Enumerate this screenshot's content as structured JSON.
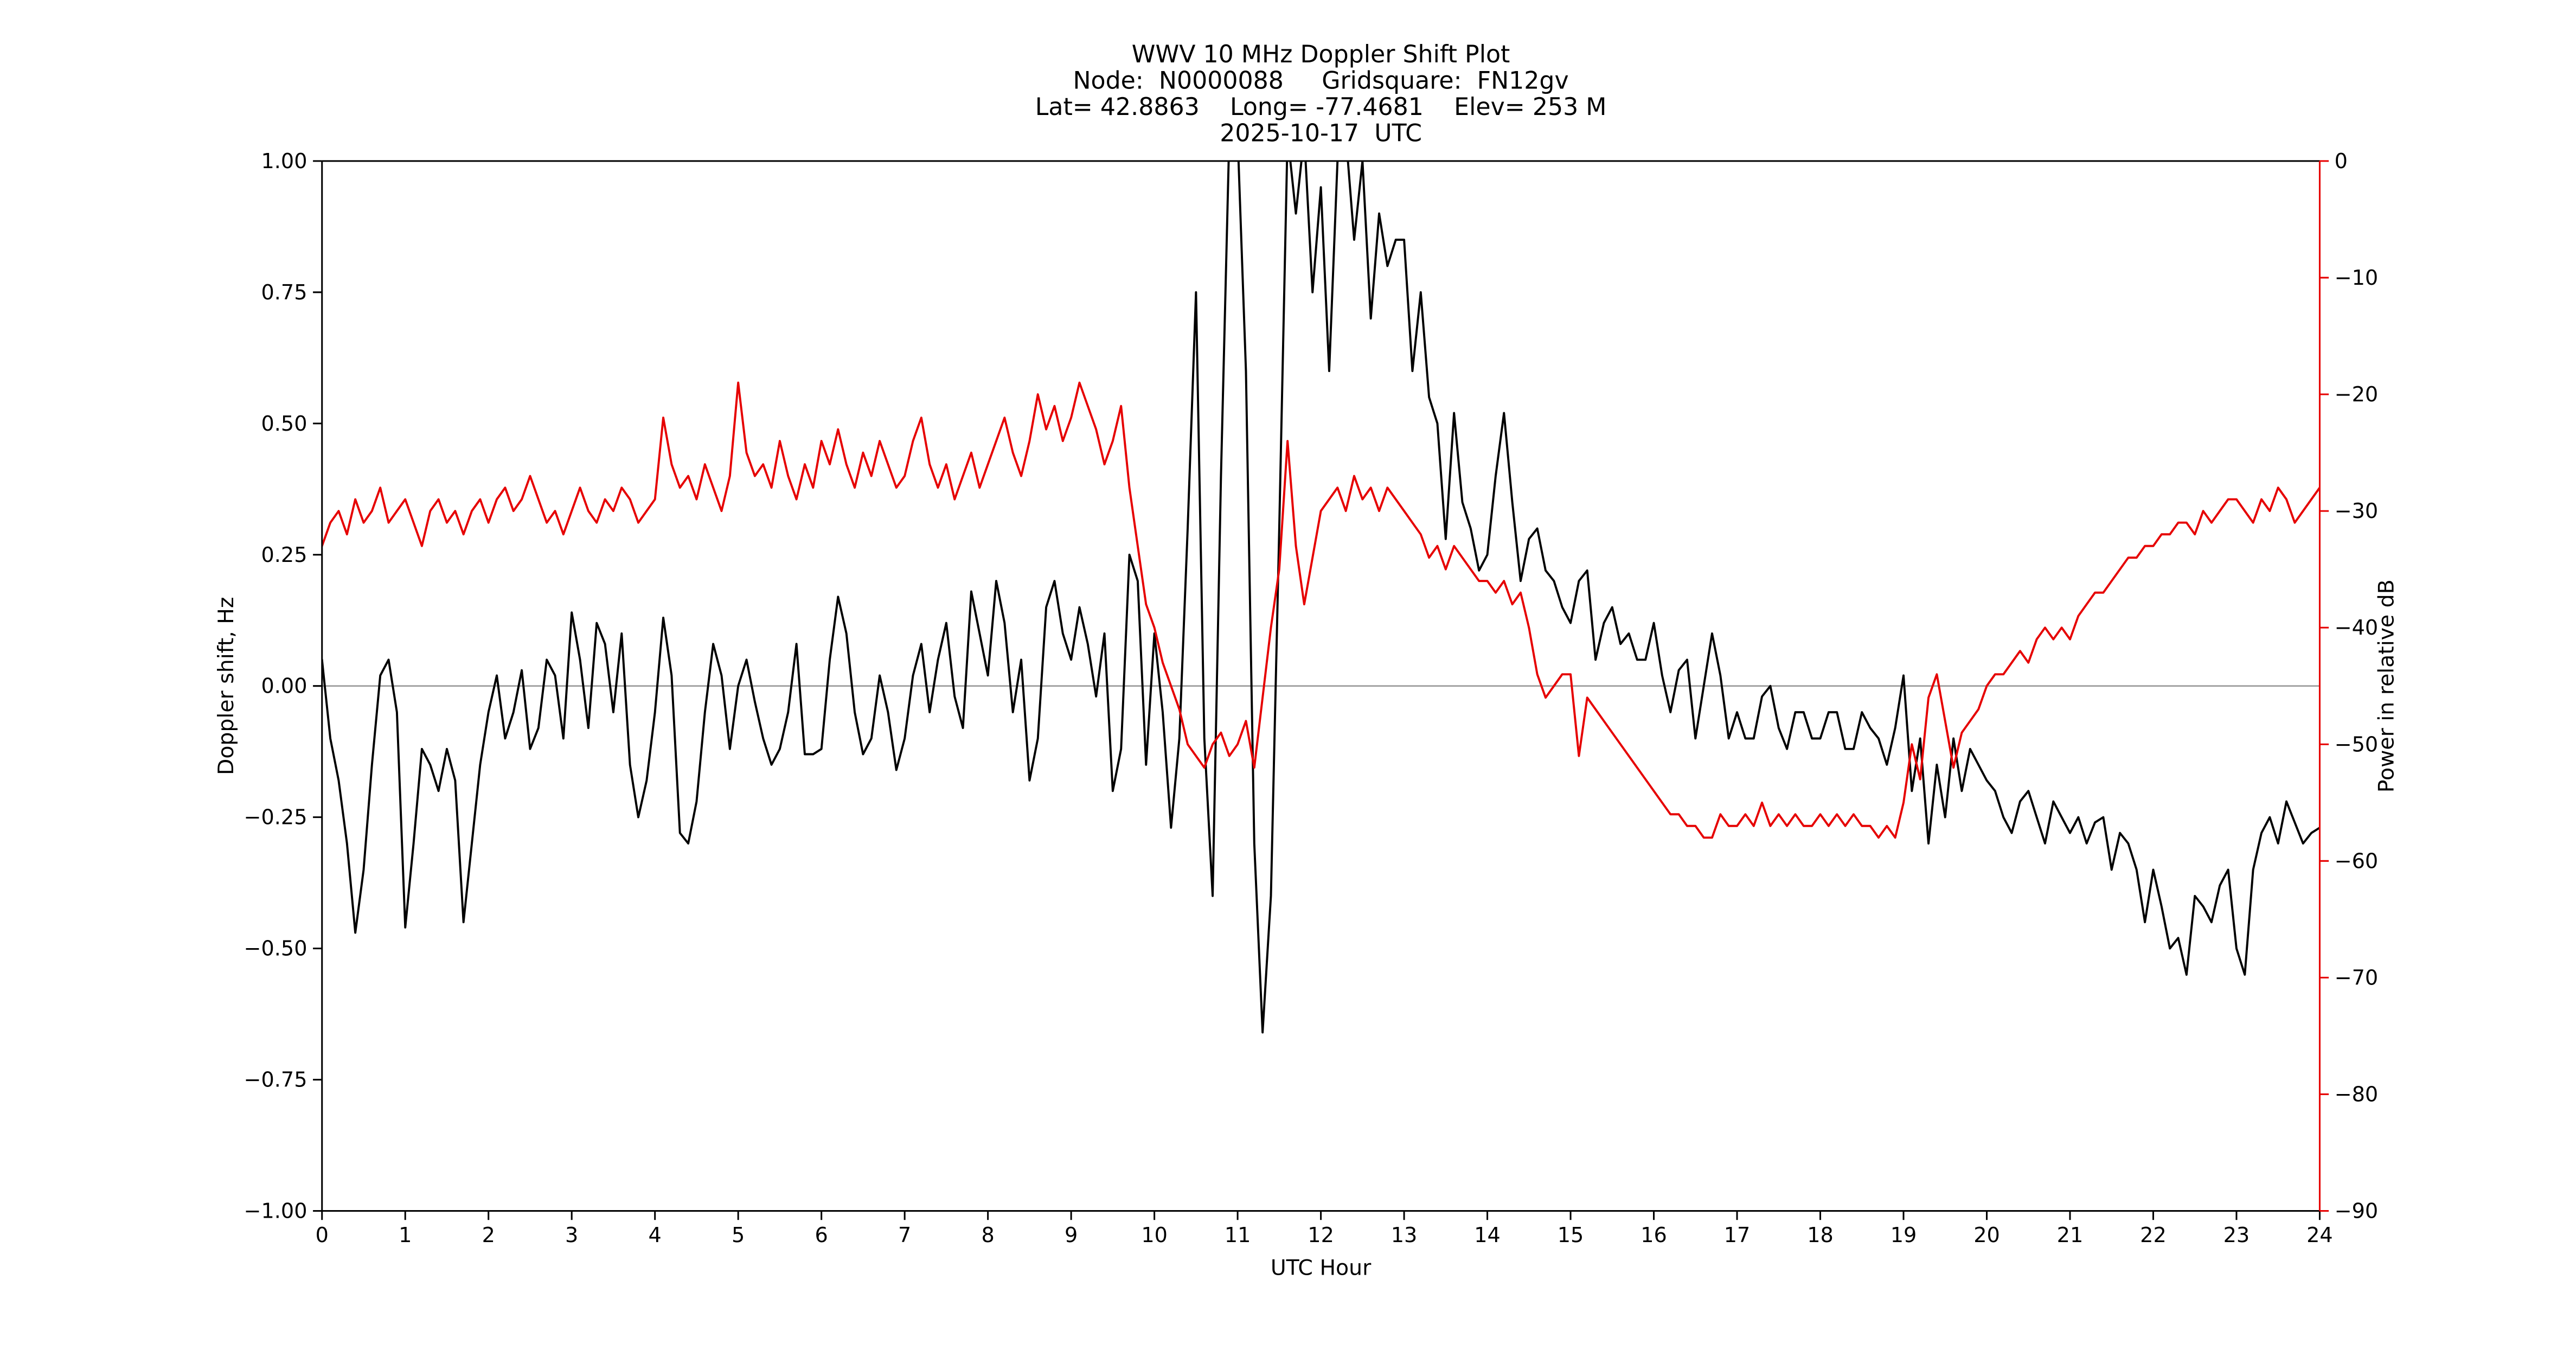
{
  "figure": {
    "title_line1": "WWV 10 MHz Doppler Shift Plot",
    "title_line2": "Node:  N0000088     Gridsquare:  FN12gv",
    "title_line3": "Lat= 42.8863    Long= -77.4681    Elev= 253 M",
    "title_line4": "2025-10-17  UTC",
    "xlabel": "UTC Hour",
    "ylabel_left": "Doppler shift, Hz",
    "ylabel_right": "Power in relative dB"
  },
  "colors": {
    "doppler": "#000000",
    "power": "#e60000",
    "zero_line": "#999999",
    "frame": "#000000"
  },
  "chart_data": {
    "type": "line",
    "title": "WWV 10 MHz Doppler Shift Plot",
    "xlabel": "UTC Hour",
    "ylabel_left": "Doppler shift, Hz",
    "ylabel_right": "Power in relative dB",
    "x_range": [
      0,
      24
    ],
    "y_left_range": [
      -1.0,
      1.0
    ],
    "y_right_range": [
      -90,
      0
    ],
    "grid": false,
    "legend": "none",
    "zero_reference_line_left": 0.0,
    "x_step": 0.1,
    "x_ticks": {
      "positions": [
        0,
        1,
        2,
        3,
        4,
        5,
        6,
        7,
        8,
        9,
        10,
        11,
        12,
        13,
        14,
        15,
        16,
        17,
        18,
        19,
        20,
        21,
        22,
        23,
        24
      ],
      "labels": [
        "0",
        "1",
        "2",
        "3",
        "4",
        "5",
        "6",
        "7",
        "8",
        "9",
        "10",
        "11",
        "12",
        "13",
        "14",
        "15",
        "16",
        "17",
        "18",
        "19",
        "20",
        "21",
        "22",
        "23",
        "24"
      ]
    },
    "y_left_ticks": {
      "positions": [
        1.0,
        0.75,
        0.5,
        0.25,
        0.0,
        -0.25,
        -0.5,
        -0.75,
        -1.0
      ],
      "labels": [
        "1.00",
        "0.75",
        "0.50",
        "0.25",
        "0.00",
        "−0.25",
        "−0.50",
        "−0.75",
        "−1.00"
      ]
    },
    "y_right_ticks": {
      "positions": [
        0,
        -10,
        -20,
        -30,
        -40,
        -50,
        -60,
        -70,
        -80,
        -90
      ],
      "labels": [
        "0",
        "−10",
        "−20",
        "−30",
        "−40",
        "−50",
        "−60",
        "−70",
        "−80",
        "−90"
      ]
    },
    "series": [
      {
        "name": "Doppler shift (Hz)",
        "axis": "left",
        "color": "#000000",
        "values": [
          0.05,
          -0.1,
          -0.18,
          -0.3,
          -0.47,
          -0.35,
          -0.15,
          0.02,
          0.05,
          -0.05,
          -0.46,
          -0.3,
          -0.12,
          -0.15,
          -0.2,
          -0.12,
          -0.18,
          -0.45,
          -0.3,
          -0.15,
          -0.05,
          0.02,
          -0.1,
          -0.05,
          0.03,
          -0.12,
          -0.08,
          0.05,
          0.02,
          -0.1,
          0.14,
          0.05,
          -0.08,
          0.12,
          0.08,
          -0.05,
          0.1,
          -0.15,
          -0.25,
          -0.18,
          -0.05,
          0.13,
          0.02,
          -0.28,
          -0.3,
          -0.22,
          -0.05,
          0.08,
          0.02,
          -0.12,
          0.0,
          0.05,
          -0.03,
          -0.1,
          -0.15,
          -0.12,
          -0.05,
          0.08,
          -0.13,
          -0.13,
          -0.12,
          0.05,
          0.17,
          0.1,
          -0.05,
          -0.13,
          -0.1,
          0.02,
          -0.05,
          -0.16,
          -0.1,
          0.02,
          0.08,
          -0.05,
          0.05,
          0.12,
          -0.02,
          -0.08,
          0.18,
          0.1,
          0.02,
          0.2,
          0.12,
          -0.05,
          0.05,
          -0.18,
          -0.1,
          0.15,
          0.2,
          0.1,
          0.05,
          0.15,
          0.08,
          -0.02,
          0.1,
          -0.2,
          -0.12,
          0.25,
          0.2,
          -0.15,
          0.1,
          -0.05,
          -0.27,
          -0.1,
          0.3,
          0.75,
          -0.1,
          -0.4,
          0.4,
          1.05,
          1.05,
          0.6,
          -0.3,
          -0.66,
          -0.4,
          0.3,
          1.05,
          0.9,
          1.05,
          0.75,
          0.95,
          0.6,
          1.0,
          1.05,
          0.85,
          1.0,
          0.7,
          0.9,
          0.8,
          0.85,
          0.85,
          0.6,
          0.75,
          0.55,
          0.5,
          0.28,
          0.52,
          0.35,
          0.3,
          0.22,
          0.25,
          0.4,
          0.52,
          0.35,
          0.2,
          0.28,
          0.3,
          0.22,
          0.2,
          0.15,
          0.12,
          0.2,
          0.22,
          0.05,
          0.12,
          0.15,
          0.08,
          0.1,
          0.05,
          0.05,
          0.12,
          0.02,
          -0.05,
          0.03,
          0.05,
          -0.1,
          0.0,
          0.1,
          0.02,
          -0.1,
          -0.05,
          -0.1,
          -0.1,
          -0.02,
          0.0,
          -0.08,
          -0.12,
          -0.05,
          -0.05,
          -0.1,
          -0.1,
          -0.05,
          -0.05,
          -0.12,
          -0.12,
          -0.05,
          -0.08,
          -0.1,
          -0.15,
          -0.08,
          0.02,
          -0.2,
          -0.1,
          -0.3,
          -0.15,
          -0.25,
          -0.1,
          -0.2,
          -0.12,
          -0.15,
          -0.18,
          -0.2,
          -0.25,
          -0.28,
          -0.22,
          -0.2,
          -0.25,
          -0.3,
          -0.22,
          -0.25,
          -0.28,
          -0.25,
          -0.3,
          -0.26,
          -0.25,
          -0.35,
          -0.28,
          -0.3,
          -0.35,
          -0.45,
          -0.35,
          -0.42,
          -0.5,
          -0.48,
          -0.55,
          -0.4,
          -0.42,
          -0.45,
          -0.38,
          -0.35,
          -0.5,
          -0.55,
          -0.35,
          -0.28,
          -0.25,
          -0.3,
          -0.22,
          -0.26,
          -0.3,
          -0.28,
          -0.27
        ]
      },
      {
        "name": "Power in relative dB",
        "axis": "right",
        "color": "#e60000",
        "values": [
          -33,
          -31,
          -30,
          -32,
          -29,
          -31,
          -30,
          -28,
          -31,
          -30,
          -29,
          -31,
          -33,
          -30,
          -29,
          -31,
          -30,
          -32,
          -30,
          -29,
          -31,
          -29,
          -28,
          -30,
          -29,
          -27,
          -29,
          -31,
          -30,
          -32,
          -30,
          -28,
          -30,
          -31,
          -29,
          -30,
          -28,
          -29,
          -31,
          -30,
          -29,
          -22,
          -26,
          -28,
          -27,
          -29,
          -26,
          -28,
          -30,
          -27,
          -19,
          -25,
          -27,
          -26,
          -28,
          -24,
          -27,
          -29,
          -26,
          -28,
          -24,
          -26,
          -23,
          -26,
          -28,
          -25,
          -27,
          -24,
          -26,
          -28,
          -27,
          -24,
          -22,
          -26,
          -28,
          -26,
          -29,
          -27,
          -25,
          -28,
          -26,
          -24,
          -22,
          -25,
          -27,
          -24,
          -20,
          -23,
          -21,
          -24,
          -22,
          -19,
          -21,
          -23,
          -26,
          -24,
          -21,
          -28,
          -33,
          -38,
          -40,
          -43,
          -45,
          -47,
          -50,
          -51,
          -52,
          -50,
          -49,
          -51,
          -50,
          -48,
          -52,
          -46,
          -40,
          -35,
          -24,
          -33,
          -38,
          -34,
          -30,
          -29,
          -28,
          -30,
          -27,
          -29,
          -28,
          -30,
          -28,
          -29,
          -30,
          -31,
          -32,
          -34,
          -33,
          -35,
          -33,
          -34,
          -35,
          -36,
          -36,
          -37,
          -36,
          -38,
          -37,
          -40,
          -44,
          -46,
          -45,
          -44,
          -44,
          -51,
          -46,
          -47,
          -48,
          -49,
          -50,
          -51,
          -52,
          -53,
          -54,
          -55,
          -56,
          -56,
          -57,
          -57,
          -58,
          -58,
          -56,
          -57,
          -57,
          -56,
          -57,
          -55,
          -57,
          -56,
          -57,
          -56,
          -57,
          -57,
          -56,
          -57,
          -56,
          -57,
          -56,
          -57,
          -57,
          -58,
          -57,
          -58,
          -55,
          -50,
          -53,
          -46,
          -44,
          -48,
          -52,
          -49,
          -48,
          -47,
          -45,
          -44,
          -44,
          -43,
          -42,
          -43,
          -41,
          -40,
          -41,
          -40,
          -41,
          -39,
          -38,
          -37,
          -37,
          -36,
          -35,
          -34,
          -34,
          -33,
          -33,
          -32,
          -32,
          -31,
          -31,
          -32,
          -30,
          -31,
          -30,
          -29,
          -29,
          -30,
          -31,
          -29,
          -30,
          -28,
          -29,
          -31,
          -30,
          -29,
          -28
        ]
      }
    ]
  }
}
